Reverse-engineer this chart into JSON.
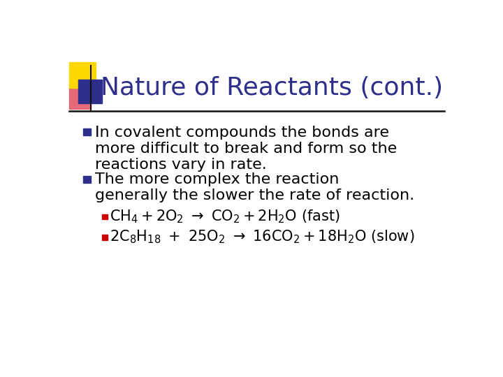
{
  "title": "Nature of Reactants (cont.)",
  "title_color": "#2E2E8B",
  "bg_color": "#FFFFFF",
  "bullet_color": "#2E2E8B",
  "sub_bullet_color": "#CC0000",
  "line_color": "#222222",
  "bullet1_lines": [
    "In covalent compounds the bonds are",
    "more difficult to break and form so the",
    "reactions vary in rate."
  ],
  "bullet2_lines": [
    "The more complex the reaction",
    "generally the slower the rate of reaction."
  ],
  "yellow_color": "#FFD700",
  "red_color": "#E05060",
  "blue_color": "#2E2E8B"
}
